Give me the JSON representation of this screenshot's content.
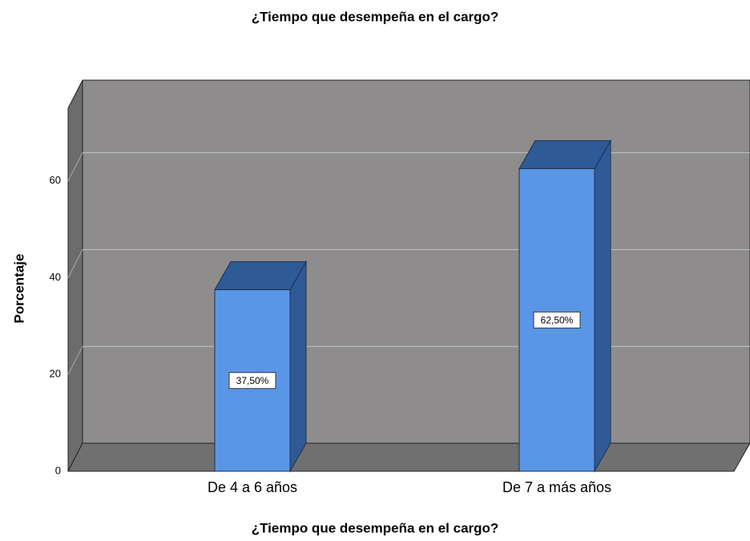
{
  "chart_data": {
    "type": "bar3d",
    "title": "¿Tiempo que desempeña en el cargo?",
    "x_label": "¿Tiempo que desempeña en el cargo?",
    "y_label": "Porcentaje",
    "categories": [
      "De 4 a 6 años",
      "De 7 a más años"
    ],
    "values": [
      37.5,
      62.5
    ],
    "value_labels": [
      "37,50%",
      "62,50%"
    ],
    "color": "#5a96e6",
    "ylim": [
      0,
      75
    ],
    "yticks": [
      0,
      20,
      40,
      60
    ],
    "grid": true
  }
}
